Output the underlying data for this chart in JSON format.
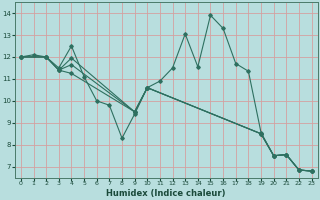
{
  "title": "",
  "xlabel": "Humidex (Indice chaleur)",
  "bg_color": "#b8dede",
  "grid_color": "#d4a0a0",
  "line_color": "#2e7060",
  "xlim": [
    -0.5,
    23.5
  ],
  "ylim": [
    6.5,
    14.5
  ],
  "xticks": [
    0,
    1,
    2,
    3,
    4,
    5,
    6,
    7,
    8,
    9,
    10,
    11,
    12,
    13,
    14,
    15,
    16,
    17,
    18,
    19,
    20,
    21,
    22,
    23
  ],
  "yticks": [
    7,
    8,
    9,
    10,
    11,
    12,
    13,
    14
  ],
  "series": [
    {
      "x": [
        0,
        1,
        2,
        3,
        4,
        5,
        6,
        7,
        8,
        9,
        10,
        11,
        12,
        13,
        14,
        15,
        16,
        17,
        18,
        19,
        20,
        21,
        22,
        23
      ],
      "y": [
        12.0,
        12.1,
        12.0,
        11.5,
        12.5,
        11.1,
        10.0,
        9.8,
        8.3,
        9.4,
        10.6,
        10.9,
        11.5,
        13.05,
        11.55,
        13.9,
        13.3,
        11.7,
        11.35,
        8.55,
        7.5,
        7.55,
        6.85,
        6.8
      ]
    },
    {
      "x": [
        0,
        2,
        3,
        4,
        9,
        10,
        19,
        20,
        21,
        22,
        23
      ],
      "y": [
        12.0,
        12.0,
        11.4,
        11.25,
        9.5,
        10.6,
        8.5,
        7.5,
        7.55,
        6.85,
        6.8
      ]
    },
    {
      "x": [
        0,
        2,
        3,
        4,
        9,
        10,
        19,
        20,
        21,
        22,
        23
      ],
      "y": [
        12.0,
        12.0,
        11.4,
        11.65,
        9.5,
        10.6,
        8.5,
        7.5,
        7.55,
        6.85,
        6.8
      ]
    },
    {
      "x": [
        0,
        2,
        3,
        4,
        9,
        10,
        19,
        20,
        21,
        22,
        23
      ],
      "y": [
        12.0,
        12.0,
        11.4,
        11.95,
        9.5,
        10.6,
        8.5,
        7.5,
        7.55,
        6.85,
        6.8
      ]
    }
  ]
}
